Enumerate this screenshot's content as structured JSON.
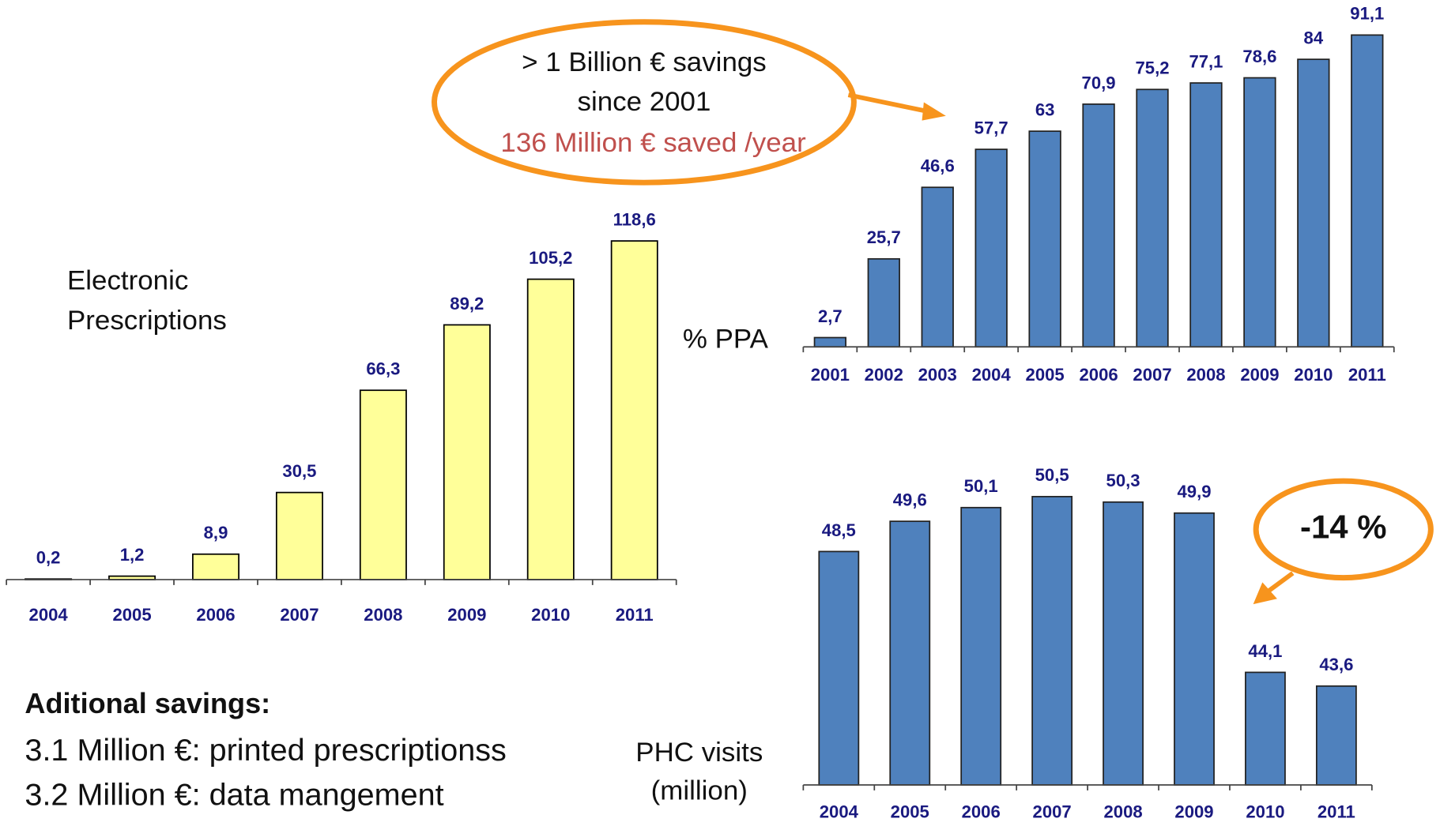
{
  "chart_data": [
    {
      "type": "bar",
      "color": "#ffff99",
      "categories": [
        "2004",
        "2005",
        "2006",
        "2007",
        "2008",
        "2009",
        "2010",
        "2011"
      ],
      "values": [
        0.2,
        1.2,
        8.9,
        30.5,
        66.3,
        89.2,
        105.2,
        118.6
      ],
      "value_labels": [
        "0,2",
        "1,2",
        "8,9",
        "30,5",
        "66,3",
        "89,2",
        "105,2",
        "118,6"
      ],
      "ylim": [
        0,
        120
      ],
      "annotations": [
        "Electronic",
        "Prescriptions"
      ]
    },
    {
      "type": "bar",
      "color": "#4f81bd",
      "categories": [
        "2001",
        "2002",
        "2003",
        "2004",
        "2005",
        "2006",
        "2007",
        "2008",
        "2009",
        "2010",
        "2011"
      ],
      "values": [
        2.7,
        25.7,
        46.6,
        57.7,
        63,
        70.9,
        75.2,
        77.1,
        78.6,
        84,
        91.1
      ],
      "value_labels": [
        "2,7",
        "25,7",
        "46,6",
        "57,7",
        "63",
        "70,9",
        "75,2",
        "77,1",
        "78,6",
        "84",
        "91,1"
      ],
      "ylim": [
        0,
        100
      ],
      "annotations": [
        "% PPA",
        "> 1 Billion € savings",
        "since 2001",
        "136 Million € saved /year"
      ]
    },
    {
      "type": "bar",
      "color": "#4f81bd",
      "categories": [
        "2004",
        "2005",
        "2006",
        "2007",
        "2008",
        "2009",
        "2010",
        "2011"
      ],
      "values": [
        48.5,
        49.6,
        50.1,
        50.5,
        50.3,
        49.9,
        44.1,
        43.6
      ],
      "value_labels": [
        "48,5",
        "49,6",
        "50,1",
        "50,5",
        "50,3",
        "49,9",
        "44,1",
        "43,6"
      ],
      "ylim": [
        40,
        51.5
      ],
      "annotations": [
        "PHC visits",
        "(million)",
        "-14 %"
      ]
    }
  ],
  "notes": {
    "heading": "Aditional savings:",
    "lines": [
      "3.1 Million €: printed prescriptionss",
      "3.2 Million €: data mangement"
    ]
  }
}
